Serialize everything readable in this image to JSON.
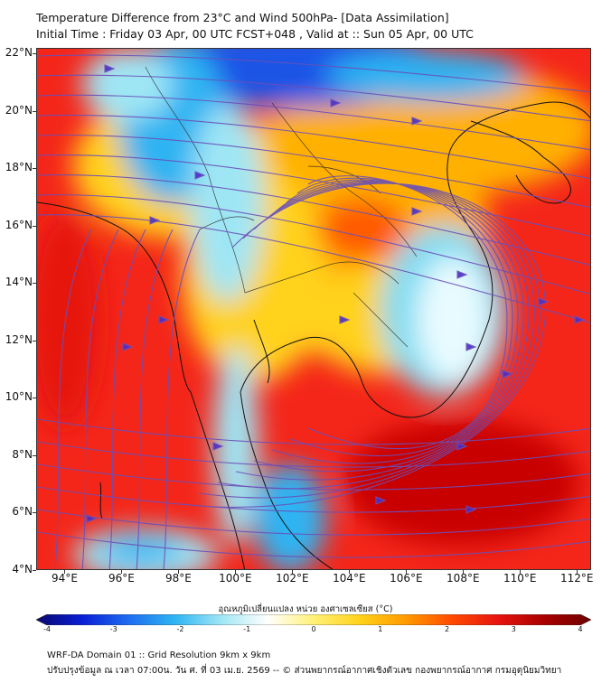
{
  "title": {
    "line1": "Temperature Difference from 23°C and Wind 500hPa- [Data Assimilation]",
    "line2": "Initial Time : Friday 03 Apr, 00 UTC FCST+048 , Valid at ::  Sun 05 Apr, 00 UTC"
  },
  "map": {
    "lat_labels": [
      "22°N",
      "20°N",
      "18°N",
      "16°N",
      "14°N",
      "12°N",
      "10°N",
      "8°N",
      "6°N",
      "4°N"
    ],
    "lon_labels": [
      "94°E",
      "96°E",
      "98°E",
      "100°E",
      "102°E",
      "104°E",
      "106°E",
      "108°E",
      "110°E",
      "112°E"
    ],
    "lat_values": [
      22,
      20,
      18,
      16,
      14,
      12,
      10,
      8,
      6,
      4
    ],
    "lon_values": [
      94,
      96,
      98,
      100,
      102,
      104,
      106,
      108,
      110,
      112
    ],
    "extent": {
      "lon_min": 93,
      "lon_max": 112.5,
      "lat_min": 4,
      "lat_max": 22.2
    }
  },
  "colorbar": {
    "label": "อุณหภูมิเปลี่ยนแปลง หน่วย องศาเซลเซียส (°C)",
    "tick_labels": [
      "-4",
      "-3",
      "-2",
      "-1",
      "0",
      "1",
      "2",
      "3",
      "4"
    ],
    "min": -4,
    "max": 4,
    "colors": [
      "#08086b",
      "#0a1fd6",
      "#1f6cf0",
      "#2fb4f2",
      "#9fe6f5",
      "#ffffff",
      "#fff176",
      "#ffd21a",
      "#ff9a00",
      "#ff4a00",
      "#e6140f",
      "#a80000",
      "#6e0000"
    ]
  },
  "footer": {
    "line1": "WRF-DA Domain 01 :: Grid Resolution 9km x 9km",
    "line2": "ปรับปรุงข้อมูล ณ เวลา 07:00น. วัน ศ. ที่ 03 เม.ย. 2569 -- © ส่วนพยากรณ์อากาศเชิงตัวเลข กองพยากรณ์อากาศ กรมอุตุนิยมวิทยา"
  },
  "colors": {
    "background_warm": "#f4261a",
    "cold": "#1f55e6",
    "cool": "#6fd6f0",
    "mild": "#ffd21a",
    "wind_lines": "#6a4fb8",
    "coastline": "#111111"
  }
}
